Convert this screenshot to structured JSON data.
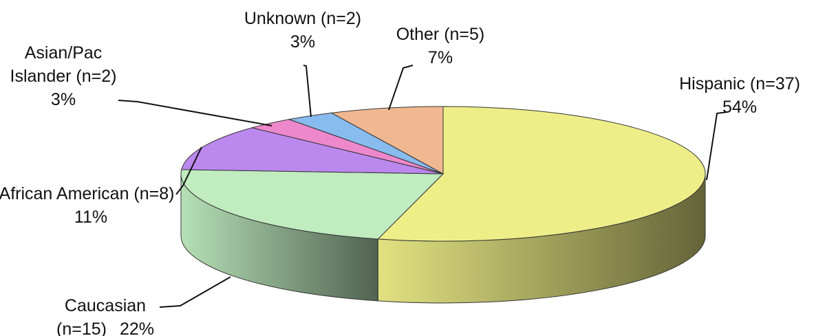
{
  "chart_data": {
    "type": "pie3d",
    "categories": [
      "Hispanic (n=37)",
      "Caucasian (n=15)",
      "African American (n=8)",
      "Asian/Pac Islander (n=2)",
      "Unknown (n=2)",
      "Other (n=5)"
    ],
    "values": [
      54,
      22,
      11,
      3,
      3,
      7
    ],
    "value_labels": [
      "54%",
      "22%",
      "11%",
      "3%",
      "3%",
      "7%"
    ],
    "colors": [
      "#eeee88",
      "#c0ecc0",
      "#bb88ee",
      "#ee88cc",
      "#88bbee",
      "#f0b890"
    ]
  }
}
